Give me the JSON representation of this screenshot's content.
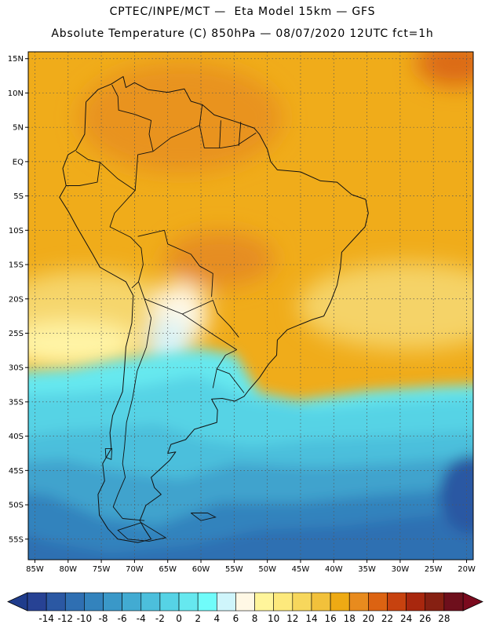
{
  "header": {
    "line1": "CPTEC/INPE/MCT —  Eta Model 15km — GFS",
    "line2": "Absolute Temperature (C) 850hPa — 08/07/2020 12UTC fct=1h"
  },
  "map": {
    "lon_range": [
      -86,
      -19
    ],
    "lat_range": [
      -58,
      16
    ],
    "lat_ticks": [
      {
        "lat": 15,
        "label": "15N"
      },
      {
        "lat": 10,
        "label": "10N"
      },
      {
        "lat": 5,
        "label": "5N"
      },
      {
        "lat": 0,
        "label": "EQ"
      },
      {
        "lat": -5,
        "label": "5S"
      },
      {
        "lat": -10,
        "label": "10S"
      },
      {
        "lat": -15,
        "label": "15S"
      },
      {
        "lat": -20,
        "label": "20S"
      },
      {
        "lat": -25,
        "label": "25S"
      },
      {
        "lat": -30,
        "label": "30S"
      },
      {
        "lat": -35,
        "label": "35S"
      },
      {
        "lat": -40,
        "label": "40S"
      },
      {
        "lat": -45,
        "label": "45S"
      },
      {
        "lat": -50,
        "label": "50S"
      },
      {
        "lat": -55,
        "label": "55S"
      }
    ],
    "lon_ticks": [
      {
        "lon": -85,
        "label": "85W"
      },
      {
        "lon": -80,
        "label": "80W"
      },
      {
        "lon": -75,
        "label": "75W"
      },
      {
        "lon": -70,
        "label": "70W"
      },
      {
        "lon": -65,
        "label": "65W"
      },
      {
        "lon": -60,
        "label": "60W"
      },
      {
        "lon": -55,
        "label": "55W"
      },
      {
        "lon": -50,
        "label": "50W"
      },
      {
        "lon": -45,
        "label": "45W"
      },
      {
        "lon": -40,
        "label": "40W"
      },
      {
        "lon": -35,
        "label": "35W"
      },
      {
        "lon": -30,
        "label": "30W"
      },
      {
        "lon": -25,
        "label": "25W"
      },
      {
        "lon": -20,
        "label": "20W"
      }
    ],
    "coastline": [
      [
        -77.3,
        8.7
      ],
      [
        -75.5,
        10.5
      ],
      [
        -73.5,
        11.3
      ],
      [
        -71.7,
        12.4
      ],
      [
        -71.3,
        10.8
      ],
      [
        -70,
        11.5
      ],
      [
        -68,
        10.5
      ],
      [
        -65,
        10.1
      ],
      [
        -62.5,
        10.6
      ],
      [
        -61.5,
        8.8
      ],
      [
        -59.8,
        8.3
      ],
      [
        -58,
        6.8
      ],
      [
        -55,
        5.9
      ],
      [
        -52,
        4.9
      ],
      [
        -51.2,
        4.0
      ],
      [
        -50,
        1.8
      ],
      [
        -49.5,
        0
      ],
      [
        -48.5,
        -1.2
      ],
      [
        -45,
        -1.5
      ],
      [
        -42,
        -2.8
      ],
      [
        -39.5,
        -3
      ],
      [
        -37.3,
        -4.8
      ],
      [
        -35.2,
        -5.5
      ],
      [
        -34.8,
        -7.5
      ],
      [
        -35.3,
        -9.5
      ],
      [
        -37.2,
        -11.5
      ],
      [
        -38.8,
        -13.2
      ],
      [
        -39,
        -15.5
      ],
      [
        -39.5,
        -18
      ],
      [
        -40.5,
        -20.5
      ],
      [
        -41.5,
        -22.5
      ],
      [
        -43.2,
        -23
      ],
      [
        -45,
        -23.7
      ],
      [
        -47,
        -24.5
      ],
      [
        -48.5,
        -26
      ],
      [
        -48.6,
        -28.2
      ],
      [
        -49.8,
        -29.5
      ],
      [
        -51.2,
        -31.5
      ],
      [
        -52.8,
        -33.3
      ],
      [
        -53.5,
        -34.2
      ],
      [
        -54.9,
        -34.9
      ],
      [
        -56.8,
        -34.5
      ],
      [
        -58.4,
        -34.6
      ],
      [
        -57.5,
        -36.2
      ],
      [
        -57.6,
        -38
      ],
      [
        -61,
        -39
      ],
      [
        -62.3,
        -40.5
      ],
      [
        -64.5,
        -41.2
      ],
      [
        -65,
        -42.5
      ],
      [
        -63.8,
        -42.3
      ],
      [
        -64.7,
        -43.5
      ],
      [
        -67.5,
        -46
      ],
      [
        -67,
        -47.5
      ],
      [
        -66,
        -48.5
      ],
      [
        -68.3,
        -50.1
      ],
      [
        -69.2,
        -52.3
      ],
      [
        -68.5,
        -53.5
      ],
      [
        -67.5,
        -55
      ],
      [
        -69.5,
        -55.5
      ],
      [
        -72.5,
        -55
      ],
      [
        -74,
        -53.5
      ],
      [
        -75.3,
        -51.5
      ],
      [
        -75.5,
        -48.5
      ],
      [
        -74.5,
        -46.5
      ],
      [
        -74.8,
        -44
      ],
      [
        -73.5,
        -41.8
      ],
      [
        -73.7,
        -39.5
      ],
      [
        -73.3,
        -37
      ],
      [
        -71.8,
        -33.5
      ],
      [
        -71.5,
        -30
      ],
      [
        -71.3,
        -27
      ],
      [
        -70.4,
        -23.5
      ],
      [
        -70.2,
        -19.5
      ],
      [
        -71.3,
        -17.5
      ],
      [
        -75.2,
        -15.4
      ],
      [
        -76.3,
        -13.5
      ],
      [
        -78.7,
        -9.5
      ],
      [
        -80,
        -7.2
      ],
      [
        -81.3,
        -5.2
      ],
      [
        -80.3,
        -3.5
      ],
      [
        -80.8,
        -1
      ],
      [
        -80,
        1
      ],
      [
        -78.8,
        1.7
      ],
      [
        -77.5,
        4
      ],
      [
        -77.4,
        6.5
      ],
      [
        -77.3,
        8.7
      ]
    ],
    "borders": [
      [
        [
          -73.4,
          11.2
        ],
        [
          -72.5,
          9.5
        ],
        [
          -72.4,
          7.5
        ],
        [
          -70,
          6.9
        ],
        [
          -67.5,
          6
        ],
        [
          -67.8,
          4
        ],
        [
          -67.2,
          1.5
        ]
      ],
      [
        [
          -67.2,
          1.5
        ],
        [
          -69.5,
          1
        ],
        [
          -69.9,
          -4.2
        ]
      ],
      [
        [
          -67.2,
          1.5
        ],
        [
          -64.5,
          3.5
        ],
        [
          -62,
          4.5
        ],
        [
          -60.2,
          5.3
        ],
        [
          -59.8,
          8.3
        ]
      ],
      [
        [
          -60.2,
          5.3
        ],
        [
          -59.5,
          2
        ],
        [
          -57,
          2
        ],
        [
          -54.5,
          2.4
        ],
        [
          -51.7,
          4.2
        ]
      ],
      [
        [
          -57,
          6
        ],
        [
          -57.2,
          2
        ]
      ],
      [
        [
          -54,
          5.8
        ],
        [
          -54.3,
          2.3
        ]
      ],
      [
        [
          -78.8,
          1.5
        ],
        [
          -77,
          0.3
        ],
        [
          -75.2,
          -0.1
        ],
        [
          -75.6,
          -3
        ],
        [
          -78.3,
          -3.5
        ],
        [
          -80.3,
          -3.5
        ]
      ],
      [
        [
          -75.2,
          -0.1
        ],
        [
          -72.5,
          -2.5
        ],
        [
          -69.9,
          -4.2
        ],
        [
          -73,
          -7.5
        ],
        [
          -73.7,
          -9.5
        ],
        [
          -70.6,
          -11
        ],
        [
          -69,
          -12.6
        ],
        [
          -68.7,
          -15
        ],
        [
          -69.4,
          -17.5
        ],
        [
          -70.4,
          -18.4
        ]
      ],
      [
        [
          -69.5,
          -10.9
        ],
        [
          -65.5,
          -10
        ],
        [
          -65,
          -12
        ],
        [
          -61.5,
          -13.5
        ],
        [
          -60.2,
          -15.2
        ],
        [
          -58.2,
          -16.3
        ],
        [
          -58.4,
          -19.7
        ]
      ],
      [
        [
          -69.4,
          -17.5
        ],
        [
          -68.5,
          -20
        ],
        [
          -67.5,
          -22.8
        ]
      ],
      [
        [
          -68.5,
          -20
        ],
        [
          -62.8,
          -22.2
        ],
        [
          -58.2,
          -20.2
        ],
        [
          -57.5,
          -22.1
        ],
        [
          -55.6,
          -24
        ],
        [
          -54.3,
          -25.6
        ]
      ],
      [
        [
          -62.8,
          -22.2
        ],
        [
          -58,
          -25.3
        ],
        [
          -54.6,
          -27.4
        ]
      ],
      [
        [
          -67.5,
          -22.8
        ],
        [
          -68.2,
          -27
        ],
        [
          -69.6,
          -30.5
        ],
        [
          -70.3,
          -34.5
        ],
        [
          -71.2,
          -38
        ],
        [
          -71.5,
          -41.5
        ],
        [
          -71.8,
          -44
        ],
        [
          -71.4,
          -46
        ],
        [
          -72.5,
          -48.5
        ],
        [
          -73.2,
          -50.3
        ],
        [
          -71.8,
          -52
        ],
        [
          -68.5,
          -52.3
        ]
      ],
      [
        [
          -54.6,
          -27.4
        ],
        [
          -56.3,
          -28.2
        ],
        [
          -57.6,
          -30.2
        ],
        [
          -58.2,
          -33
        ]
      ],
      [
        [
          -57.6,
          -30.2
        ],
        [
          -55.7,
          -30.9
        ],
        [
          -53.5,
          -33.7
        ]
      ]
    ],
    "islands": [
      [
        [
          -69,
          -52.6
        ],
        [
          -65.3,
          -54.8
        ],
        [
          -67.8,
          -55.3
        ],
        [
          -71,
          -55
        ],
        [
          -72.5,
          -53.7
        ],
        [
          -69,
          -52.6
        ]
      ],
      [
        [
          -61.5,
          -51.2
        ],
        [
          -59,
          -51.2
        ],
        [
          -57.8,
          -51.8
        ],
        [
          -60,
          -52.3
        ],
        [
          -61.5,
          -51.2
        ]
      ],
      [
        [
          -74.4,
          -41.8
        ],
        [
          -73.4,
          -41.8
        ],
        [
          -73.5,
          -43.4
        ],
        [
          -74.3,
          -43.1
        ],
        [
          -74.4,
          -41.8
        ]
      ]
    ],
    "grid_color": "#555555",
    "line_color": "#111111"
  },
  "colorbar": {
    "labels": [
      "-14",
      "-12",
      "-10",
      "-8",
      "-6",
      "-4",
      "-2",
      "0",
      "2",
      "4",
      "6",
      "8",
      "10",
      "12",
      "14",
      "16",
      "18",
      "20",
      "22",
      "24",
      "26",
      "28"
    ],
    "low_color": "#1f3c8c",
    "high_color": "#7b0a1e",
    "colors": [
      "#274294",
      "#2b58a3",
      "#2f6fb2",
      "#3383bd",
      "#3a98c8",
      "#42abd2",
      "#4cbfdc",
      "#56d3e5",
      "#66e8ef",
      "#70fcfa",
      "#cff5fb",
      "#fff8e5",
      "#fff59b",
      "#fde97c",
      "#f7d75c",
      "#f2c13b",
      "#eeaa14",
      "#e88b1e",
      "#dc6312",
      "#c7420f",
      "#a8270e",
      "#862012",
      "#6e0f1c"
    ]
  }
}
